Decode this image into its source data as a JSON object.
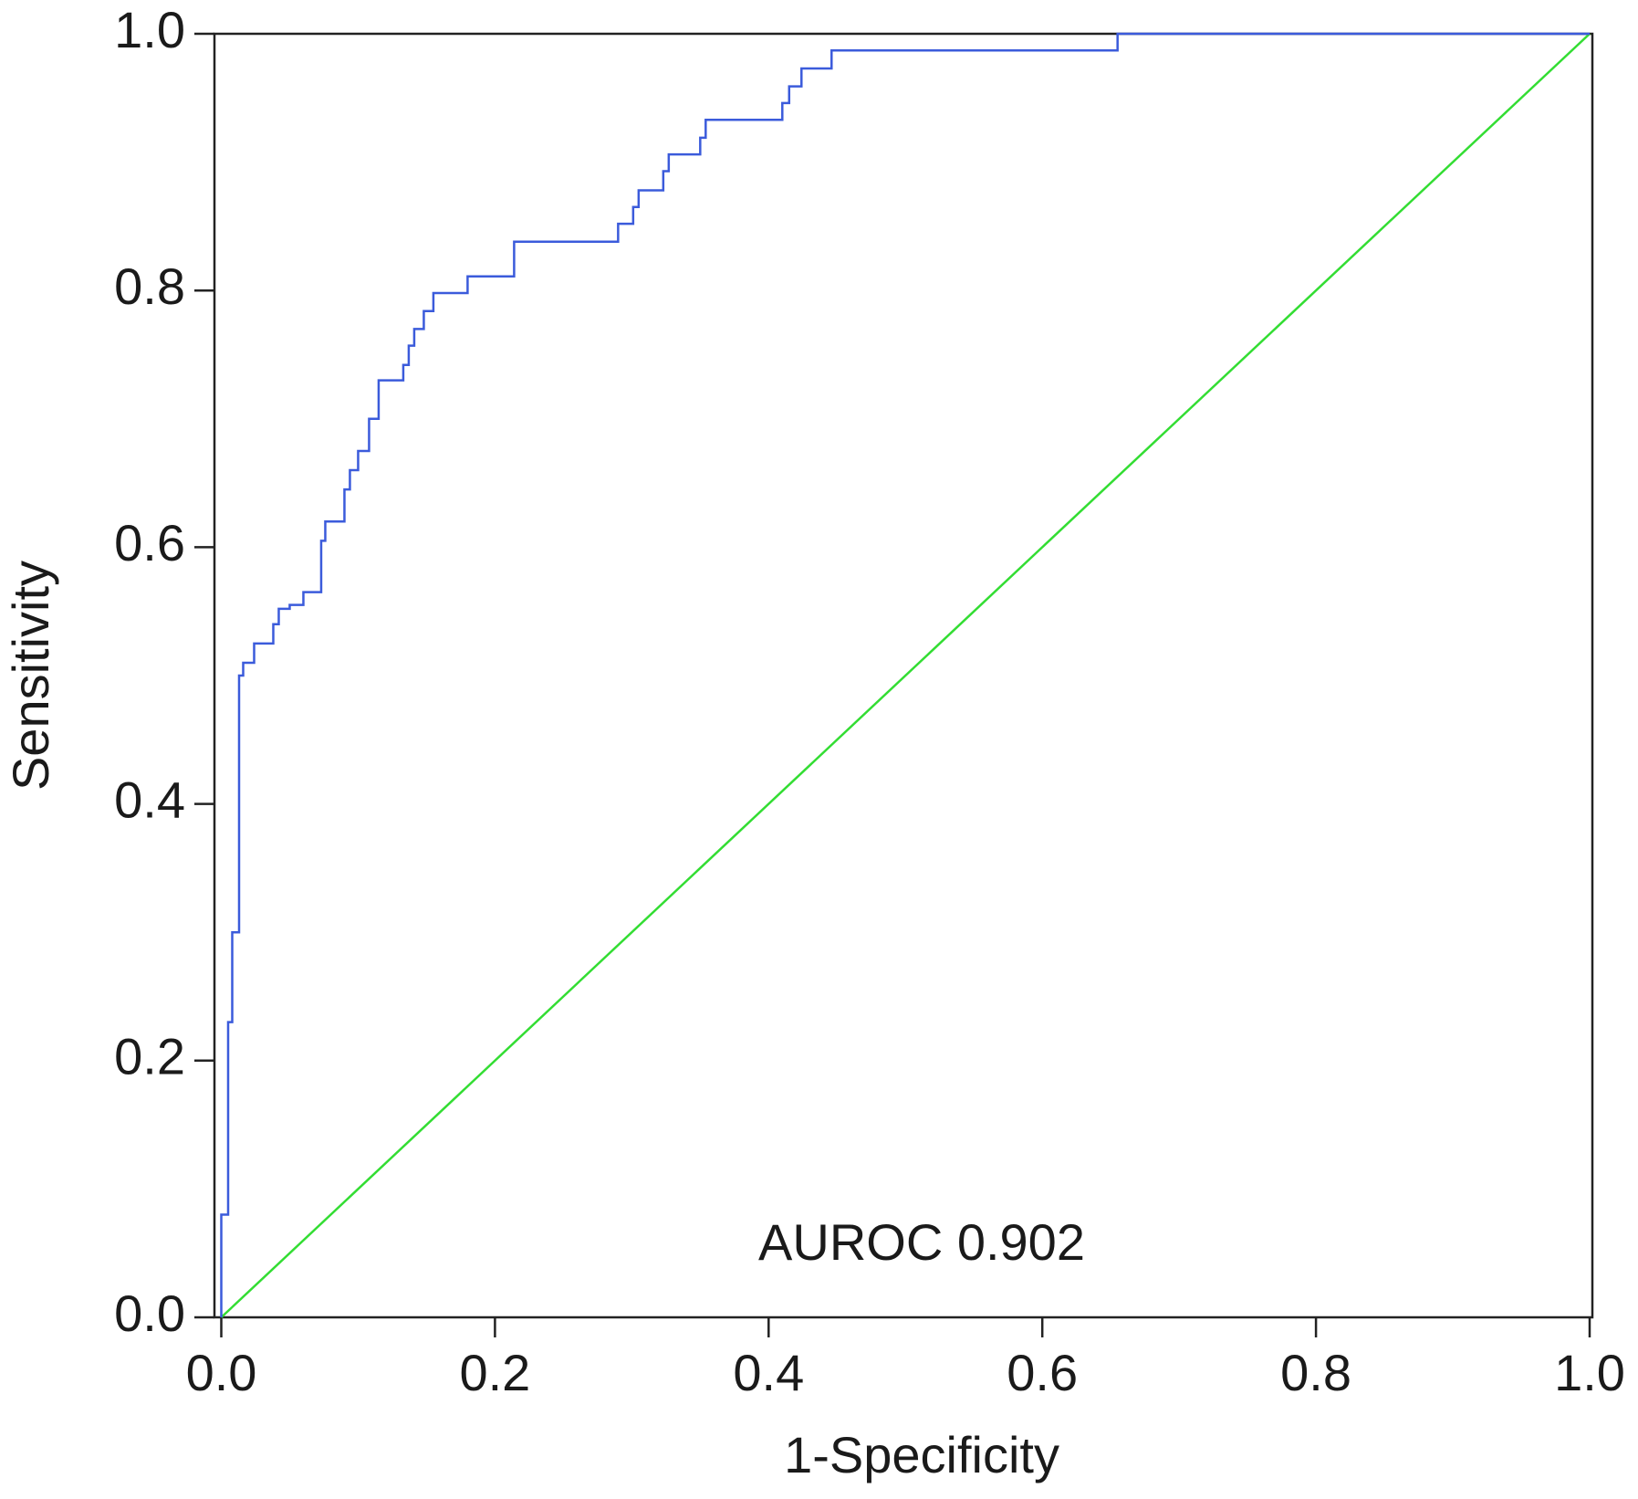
{
  "chart_data": {
    "type": "line",
    "xlabel": "1-Specificity",
    "ylabel": "Sensitivity",
    "annotation": "AUROC 0.902",
    "xlim": [
      -0.005,
      1.002
    ],
    "ylim": [
      0,
      1
    ],
    "xticks": [
      {
        "value": 0,
        "label": "0.0"
      },
      0.2,
      0.4,
      0.6,
      0.8,
      {
        "value": 1,
        "label": "1.0"
      }
    ],
    "yticks": [
      {
        "value": 0,
        "label": "0.0"
      },
      0.2,
      0.4,
      0.6,
      0.8,
      {
        "value": 1,
        "label": "1.0"
      }
    ],
    "series": [
      {
        "color": "#3b5bdb",
        "x": [
          0,
          0,
          0.005,
          0.005,
          0.008,
          0.008,
          0.013,
          0.013,
          0.016,
          0.016,
          0.024,
          0.024,
          0.038,
          0.038,
          0.042,
          0.042,
          0.05,
          0.05,
          0.06,
          0.06,
          0.073,
          0.073,
          0.076,
          0.076,
          0.09,
          0.09,
          0.094,
          0.094,
          0.1,
          0.1,
          0.108,
          0.108,
          0.115,
          0.115,
          0.133,
          0.133,
          0.137,
          0.137,
          0.141,
          0.141,
          0.148,
          0.148,
          0.155,
          0.155,
          0.18,
          0.18,
          0.214,
          0.214,
          0.29,
          0.29,
          0.301,
          0.301,
          0.305,
          0.305,
          0.323,
          0.323,
          0.327,
          0.327,
          0.35,
          0.35,
          0.354,
          0.354,
          0.41,
          0.41,
          0.415,
          0.415,
          0.424,
          0.424,
          0.446,
          0.446,
          0.655,
          0.655,
          1
        ],
        "y": [
          0,
          0.08,
          0.08,
          0.23,
          0.23,
          0.3,
          0.3,
          0.5,
          0.5,
          0.51,
          0.51,
          0.525,
          0.525,
          0.54,
          0.54,
          0.552,
          0.552,
          0.555,
          0.555,
          0.565,
          0.565,
          0.605,
          0.605,
          0.62,
          0.62,
          0.645,
          0.645,
          0.66,
          0.66,
          0.675,
          0.675,
          0.7,
          0.7,
          0.73,
          0.73,
          0.742,
          0.742,
          0.757,
          0.757,
          0.77,
          0.77,
          0.784,
          0.784,
          0.798,
          0.798,
          0.811,
          0.811,
          0.838,
          0.838,
          0.852,
          0.852,
          0.865,
          0.865,
          0.878,
          0.878,
          0.893,
          0.893,
          0.906,
          0.906,
          0.919,
          0.919,
          0.933,
          0.933,
          0.946,
          0.946,
          0.959,
          0.959,
          0.973,
          0.973,
          0.987,
          0.987,
          1,
          1
        ]
      },
      {
        "color": "#33dd33",
        "x": [
          0,
          1
        ],
        "y": [
          0,
          1
        ]
      }
    ]
  }
}
